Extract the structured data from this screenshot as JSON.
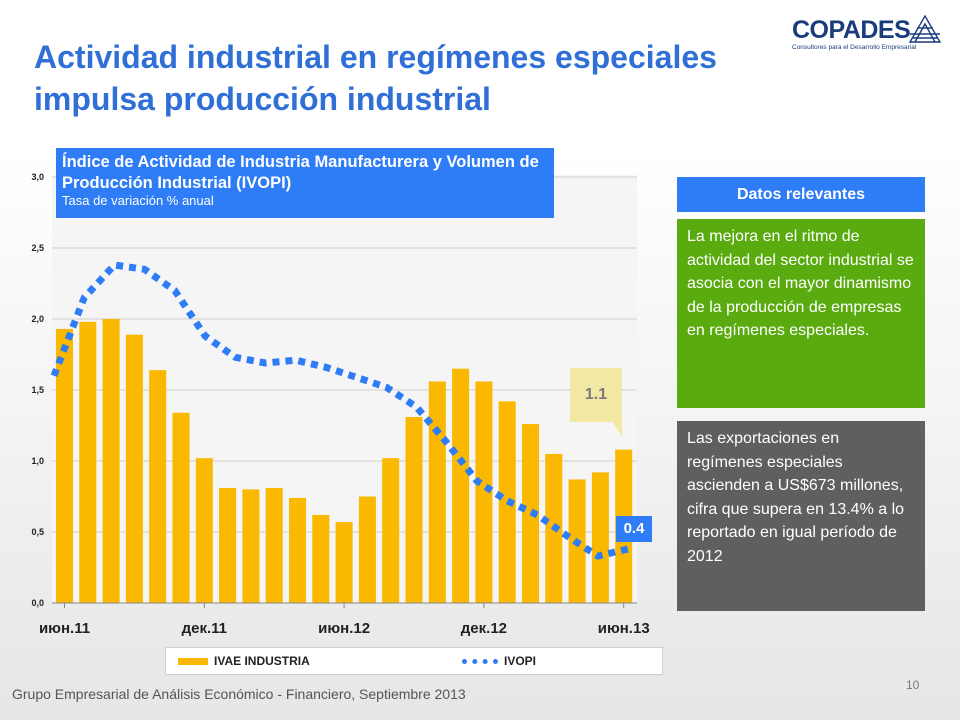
{
  "header": {
    "title": "Actividad industrial en regímenes especiales impulsa producción industrial",
    "logo_name": "COPADES",
    "logo_tagline": "Consultores para el Desarrollo Empresarial"
  },
  "chart_box": {
    "title": "Índice de Actividad de Industria Manufacturera y Volumen de Producción Industrial (IVOPI)",
    "subtitle": "Tasa de variación % anual"
  },
  "callouts": {
    "bar_last": "1.1",
    "line_last": "0.4"
  },
  "legend": {
    "bars": "IVAE INDUSTRIA",
    "line": "IVOPI"
  },
  "facts": {
    "header": "Datos relevantes",
    "green_text": "La mejora en el ritmo de actividad del sector industrial se asocia con el mayor dinamismo de la producción de empresas en regímenes especiales.",
    "gray_text": "Las exportaciones en regímenes especiales ascienden a US$673 millones, cifra que supera en 13.4% a lo reportado en igual período de 2012"
  },
  "footer": {
    "text": "Grupo Empresarial de Análisis Económico - Financiero, Septiembre 2013",
    "page": "10"
  },
  "colors": {
    "bars": "#fbb800",
    "line": "#2e7cf6",
    "accent": "#2e7cf6",
    "green": "#5aab10",
    "gray": "#5f5f5f"
  },
  "chart_data": {
    "type": "bar",
    "ylim": [
      0,
      3.0
    ],
    "yticks": [
      "0,0",
      "0,5",
      "1,0",
      "1,5",
      "2,0",
      "2,5",
      "3,0"
    ],
    "xtick_labels": [
      {
        "index": 0,
        "label": "июн.11"
      },
      {
        "index": 6,
        "label": "дек.11"
      },
      {
        "index": 12,
        "label": "июн.12"
      },
      {
        "index": 18,
        "label": "дек.12"
      },
      {
        "index": 24,
        "label": "июн.13"
      }
    ],
    "grid": true,
    "legend_position": "bottom",
    "series": [
      {
        "name": "IVAE INDUSTRIA",
        "kind": "bar",
        "values": [
          1.93,
          1.98,
          2.0,
          1.89,
          1.64,
          1.34,
          1.02,
          0.81,
          0.8,
          0.81,
          0.74,
          0.62,
          0.57,
          0.75,
          1.02,
          1.31,
          1.56,
          1.65,
          1.56,
          1.42,
          1.26,
          1.05,
          0.87,
          0.92,
          1.08
        ]
      },
      {
        "name": "IVOPI",
        "kind": "line",
        "values": [
          1.6,
          2.15,
          2.38,
          2.35,
          2.2,
          1.88,
          1.73,
          1.69,
          1.71,
          1.66,
          1.59,
          1.52,
          1.38,
          1.13,
          0.86,
          0.72,
          0.62,
          0.47,
          0.33,
          0.38
        ]
      }
    ]
  }
}
